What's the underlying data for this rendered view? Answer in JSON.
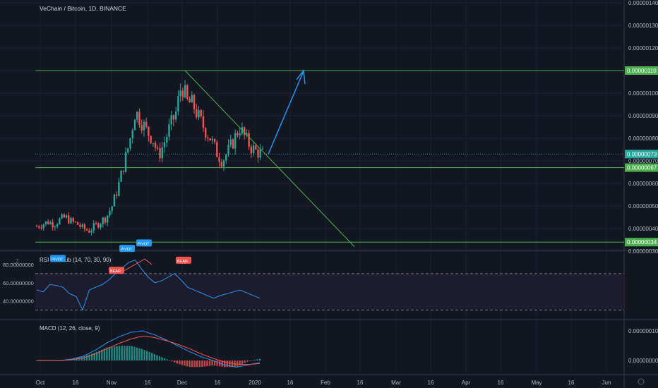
{
  "colors": {
    "bg": "#131722",
    "grid": "#1e2230",
    "axis_text": "#b2b5be",
    "up": "#26a69a",
    "down": "#ef5350",
    "level": "#4caf50",
    "price_tag": "#26a69a",
    "trend": "#4caf50",
    "arrow": "#2196f3",
    "rsi": "#2196f3",
    "macd": "#2196f3",
    "signal": "#ef5350",
    "pivot": "#2196f3",
    "bear": "#ef5350"
  },
  "main": {
    "title": "VeChain / Bitcoin, 1D, BINANCE",
    "price_ticks": [
      "0.00000140",
      "0.00000130",
      "0.00000120",
      "0.00000110",
      "0.00000100",
      "0.00000090",
      "0.00000080",
      "0.00000070",
      "0.00000060",
      "0.00000050",
      "0.00000040",
      "0.00000030"
    ],
    "price_tags": [
      {
        "label": "0.00000110",
        "color": "#4caf50"
      },
      {
        "label": "0.00000073",
        "color": "#26a69a"
      },
      {
        "label": "0.00000067",
        "color": "#4caf50"
      },
      {
        "label": "0.00000034",
        "color": "#4caf50"
      }
    ]
  },
  "rsi": {
    "title": "RSI Div - Lib (14, 70, 30, 90)",
    "ticks": [
      "80.00000000",
      "60.00000000",
      "40.00000000"
    ],
    "badges": [
      {
        "label": "PIVOT",
        "kind": "pivot"
      },
      {
        "label": "BEAR",
        "kind": "bear"
      },
      {
        "label": "PIVOT",
        "kind": "pivot"
      },
      {
        "label": "PIVOT",
        "kind": "pivot"
      },
      {
        "label": "BEAR",
        "kind": "bear"
      }
    ]
  },
  "macd": {
    "title": "MACD (12, 26, close, 9)",
    "ticks": [
      "0.00000010",
      "0.00000000"
    ]
  },
  "time_axis": [
    "Oct",
    "16",
    "Nov",
    "16",
    "Dec",
    "16",
    "2020",
    "16",
    "Feb",
    "16",
    "Mar",
    "16",
    "Apr",
    "16",
    "May",
    "16",
    "Jun"
  ],
  "chart_data": {
    "type": "candlestick",
    "title": "VeChain / Bitcoin, 1D, BINANCE",
    "x_range": [
      "Oct",
      "Jun"
    ],
    "price_range": [
      3e-07,
      1.4e-06
    ],
    "levels": [
      1.1e-06,
      7.3e-07,
      6.7e-07,
      3.4e-07
    ],
    "close_path": [
      4.1e-07,
      4.2e-07,
      4.3e-07,
      4.2e-07,
      4.4e-07,
      4.5e-07,
      4.3e-07,
      4.2e-07,
      4e-07,
      3.9e-07,
      4.1e-07,
      4.3e-07,
      4.5e-07,
      5e-07,
      5.8e-07,
      6.8e-07,
      7.8e-07,
      9.2e-07,
      8.8e-07,
      8.3e-07,
      8e-07,
      7.2e-07,
      7.8e-07,
      8.5e-07,
      9.1e-07,
      1.04e-06,
      9.6e-07,
      9.5e-07,
      8.9e-07,
      8.4e-07,
      8e-07,
      7.4e-07,
      7e-07,
      7.4e-07,
      7.9e-07,
      8.5e-07,
      8e-07,
      7.6e-07,
      7.4e-07,
      7.3e-07
    ],
    "trendline": {
      "from": [
        "Dec",
        1.1e-06
      ],
      "to": [
        "Feb",
        3.2e-07
      ]
    },
    "projection_arrow": {
      "from": [
        "2020",
        7.3e-07
      ],
      "to": [
        "Jan 16",
        1.1e-06
      ]
    },
    "rsi_path": [
      52,
      50,
      58,
      57,
      55,
      48,
      45,
      30,
      52,
      55,
      58,
      63,
      70,
      76,
      82,
      85,
      75,
      66,
      60,
      62,
      66,
      70,
      63,
      55,
      52,
      49,
      46,
      43,
      46,
      48,
      50,
      52,
      49,
      46,
      43
    ],
    "rsi_range": [
      25,
      90
    ],
    "rsi_bands": [
      70,
      30
    ],
    "macd_path": [
      0,
      0,
      0,
      0.2,
      0.6,
      1.4,
      2.4,
      3.2,
      3.8,
      4,
      3.5,
      2.8,
      2,
      1.2,
      0.5,
      0,
      -0.6,
      -0.9,
      -0.6,
      -0.3
    ],
    "macd_signal_path": [
      0,
      0,
      0,
      0.1,
      0.35,
      0.9,
      1.6,
      2.3,
      2.9,
      3.3,
      3.1,
      2.7,
      2.2,
      1.6,
      0.9,
      0.3,
      -0.2,
      -0.5,
      -0.55,
      -0.4
    ]
  }
}
